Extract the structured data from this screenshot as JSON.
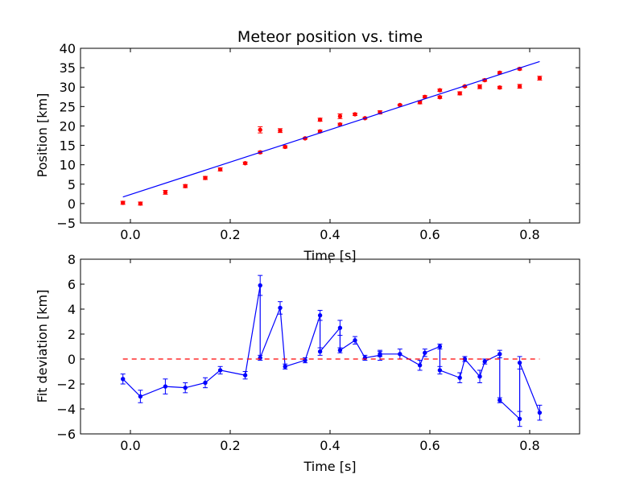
{
  "chart_data": [
    {
      "type": "scatter",
      "title": "Meteor position vs. time",
      "xlabel": "Time [s]",
      "ylabel": "Position [km]",
      "xlim": [
        -0.1,
        0.9
      ],
      "ylim": [
        -5,
        40
      ],
      "xticks": [
        0.0,
        0.2,
        0.4,
        0.6,
        0.8
      ],
      "xtick_labels": [
        "0.0",
        "0.2",
        "0.4",
        "0.6",
        "0.8"
      ],
      "yticks": [
        -5,
        0,
        5,
        10,
        15,
        20,
        25,
        30,
        35,
        40
      ],
      "ytick_labels": [
        "−5",
        "0",
        "5",
        "10",
        "15",
        "20",
        "25",
        "30",
        "35",
        "40"
      ],
      "grid": false,
      "legend": "none",
      "series": [
        {
          "kind": "points-with-errorbars",
          "color": "#ff0000",
          "x": [
            -0.015,
            0.02,
            0.07,
            0.11,
            0.15,
            0.18,
            0.23,
            0.26,
            0.26,
            0.3,
            0.31,
            0.35,
            0.38,
            0.38,
            0.42,
            0.42,
            0.45,
            0.47,
            0.5,
            0.54,
            0.58,
            0.59,
            0.62,
            0.62,
            0.66,
            0.67,
            0.7,
            0.71,
            0.74,
            0.74,
            0.78,
            0.78,
            0.82
          ],
          "y": [
            0.2,
            0.0,
            2.9,
            4.5,
            6.6,
            8.8,
            10.4,
            13.2,
            19.0,
            18.8,
            14.6,
            16.8,
            18.6,
            21.6,
            20.4,
            22.5,
            23.0,
            22.0,
            23.5,
            25.4,
            26.1,
            27.5,
            29.2,
            27.4,
            28.4,
            30.2,
            30.1,
            31.8,
            33.7,
            29.9,
            34.7,
            30.2,
            32.3
          ],
          "yerr": [
            0.4,
            0.4,
            0.5,
            0.4,
            0.4,
            0.4,
            0.3,
            0.3,
            0.8,
            0.5,
            0.3,
            0.2,
            0.3,
            0.4,
            0.3,
            0.6,
            0.3,
            0.2,
            0.4,
            0.2,
            0.4,
            0.3,
            0.3,
            0.3,
            0.4,
            0.2,
            0.5,
            0.3,
            0.3,
            0.3,
            0.3,
            0.5,
            0.5
          ]
        },
        {
          "kind": "line",
          "color": "#0000ff",
          "x": [
            -0.015,
            0.82
          ],
          "y": [
            1.7,
            36.6
          ]
        }
      ]
    },
    {
      "type": "line",
      "title": "",
      "xlabel": "Time [s]",
      "ylabel": "Fit deviation [km]",
      "xlim": [
        -0.1,
        0.9
      ],
      "ylim": [
        -6,
        8
      ],
      "xticks": [
        0.0,
        0.2,
        0.4,
        0.6,
        0.8
      ],
      "xtick_labels": [
        "0.0",
        "0.2",
        "0.4",
        "0.6",
        "0.8"
      ],
      "yticks": [
        -6,
        -4,
        -2,
        0,
        2,
        4,
        6,
        8
      ],
      "ytick_labels": [
        "−6",
        "−4",
        "−2",
        "0",
        "2",
        "4",
        "6",
        "8"
      ],
      "grid": false,
      "legend": "none",
      "series": [
        {
          "kind": "line-with-errorbars",
          "color": "#0000ff",
          "x": [
            -0.015,
            0.02,
            0.07,
            0.11,
            0.15,
            0.18,
            0.23,
            0.26,
            0.26,
            0.3,
            0.31,
            0.35,
            0.38,
            0.38,
            0.42,
            0.42,
            0.45,
            0.47,
            0.5,
            0.5,
            0.54,
            0.58,
            0.59,
            0.62,
            0.62,
            0.66,
            0.67,
            0.7,
            0.71,
            0.74,
            0.74,
            0.78,
            0.78,
            0.82
          ],
          "y": [
            -1.6,
            -3.0,
            -2.2,
            -2.3,
            -1.9,
            -0.9,
            -1.3,
            5.9,
            0.1,
            4.1,
            -0.6,
            -0.1,
            3.5,
            0.6,
            2.5,
            0.7,
            1.5,
            0.1,
            0.3,
            0.4,
            0.4,
            -0.5,
            0.5,
            1.0,
            -0.9,
            -1.5,
            0.0,
            -1.4,
            -0.2,
            0.4,
            -3.3,
            -4.8,
            -0.3,
            -4.3
          ],
          "yerr": [
            0.4,
            0.5,
            0.6,
            0.4,
            0.4,
            0.3,
            0.3,
            0.8,
            0.2,
            0.5,
            0.2,
            0.2,
            0.4,
            0.3,
            0.6,
            0.2,
            0.3,
            0.2,
            0.4,
            0.2,
            0.4,
            0.4,
            0.3,
            0.2,
            0.3,
            0.4,
            0.2,
            0.5,
            0.2,
            0.3,
            0.2,
            0.6,
            0.5,
            0.6
          ]
        },
        {
          "kind": "dashed-line",
          "color": "#ff0000",
          "x": [
            -0.015,
            0.82
          ],
          "y": [
            0,
            0
          ]
        }
      ]
    }
  ]
}
